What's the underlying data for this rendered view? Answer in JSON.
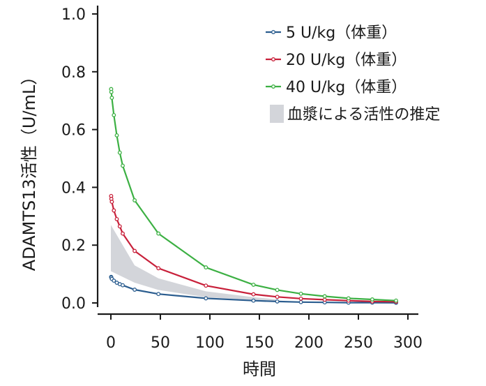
{
  "chart_data": {
    "type": "line",
    "xlabel": "時間",
    "ylabel": "ADAMTS13活性（U/mL）",
    "xlim": [
      0,
      300
    ],
    "ylim": [
      0,
      1.0
    ],
    "x_ticks": [
      0,
      50,
      100,
      150,
      200,
      250,
      300
    ],
    "y_ticks": [
      0.0,
      0.2,
      0.4,
      0.6,
      0.8,
      1.0
    ],
    "x_tick_labels": [
      "0",
      "50",
      "100",
      "150",
      "200",
      "250",
      "300"
    ],
    "y_tick_labels": [
      "0.0",
      "0.2",
      "0.4",
      "0.6",
      "0.8",
      "1.0"
    ],
    "grid": false,
    "legend_position": "top-right",
    "series": [
      {
        "name": "5 U/kg（体重）",
        "color": "#2b5d8f",
        "x": [
          0.25,
          0.5,
          1,
          3,
          6,
          9,
          12,
          24,
          48,
          96,
          144,
          168,
          192,
          216,
          240,
          264,
          288
        ],
        "y": [
          0.09,
          0.088,
          0.083,
          0.077,
          0.07,
          0.065,
          0.061,
          0.046,
          0.031,
          0.016,
          0.008,
          0.005,
          0.003,
          0.002,
          0.001,
          0.001,
          0.0005
        ]
      },
      {
        "name": "20 U/kg（体重）",
        "color": "#c8203a",
        "x": [
          0.25,
          0.5,
          1,
          3,
          6,
          9,
          12,
          24,
          48,
          96,
          144,
          168,
          192,
          216,
          240,
          264,
          288
        ],
        "y": [
          0.37,
          0.36,
          0.35,
          0.32,
          0.29,
          0.265,
          0.24,
          0.18,
          0.12,
          0.06,
          0.03,
          0.021,
          0.015,
          0.011,
          0.008,
          0.005,
          0.004
        ]
      },
      {
        "name": "40 U/kg（体重）",
        "color": "#3cb043",
        "x": [
          0.25,
          0.5,
          1,
          3,
          6,
          9,
          12,
          24,
          48,
          96,
          144,
          168,
          192,
          216,
          240,
          264,
          288
        ],
        "y": [
          0.74,
          0.73,
          0.71,
          0.65,
          0.58,
          0.52,
          0.475,
          0.355,
          0.24,
          0.123,
          0.063,
          0.045,
          0.032,
          0.023,
          0.016,
          0.012,
          0.008
        ]
      }
    ],
    "band": {
      "name": "血漿による活性の推定",
      "color": "#d3d5da",
      "x": [
        0,
        24,
        48,
        96,
        144,
        168
      ],
      "upper": [
        0.27,
        0.13,
        0.085,
        0.04,
        0.02,
        0.012
      ],
      "lower": [
        0.11,
        0.07,
        0.045,
        0.02,
        0.01,
        0.006
      ]
    }
  }
}
